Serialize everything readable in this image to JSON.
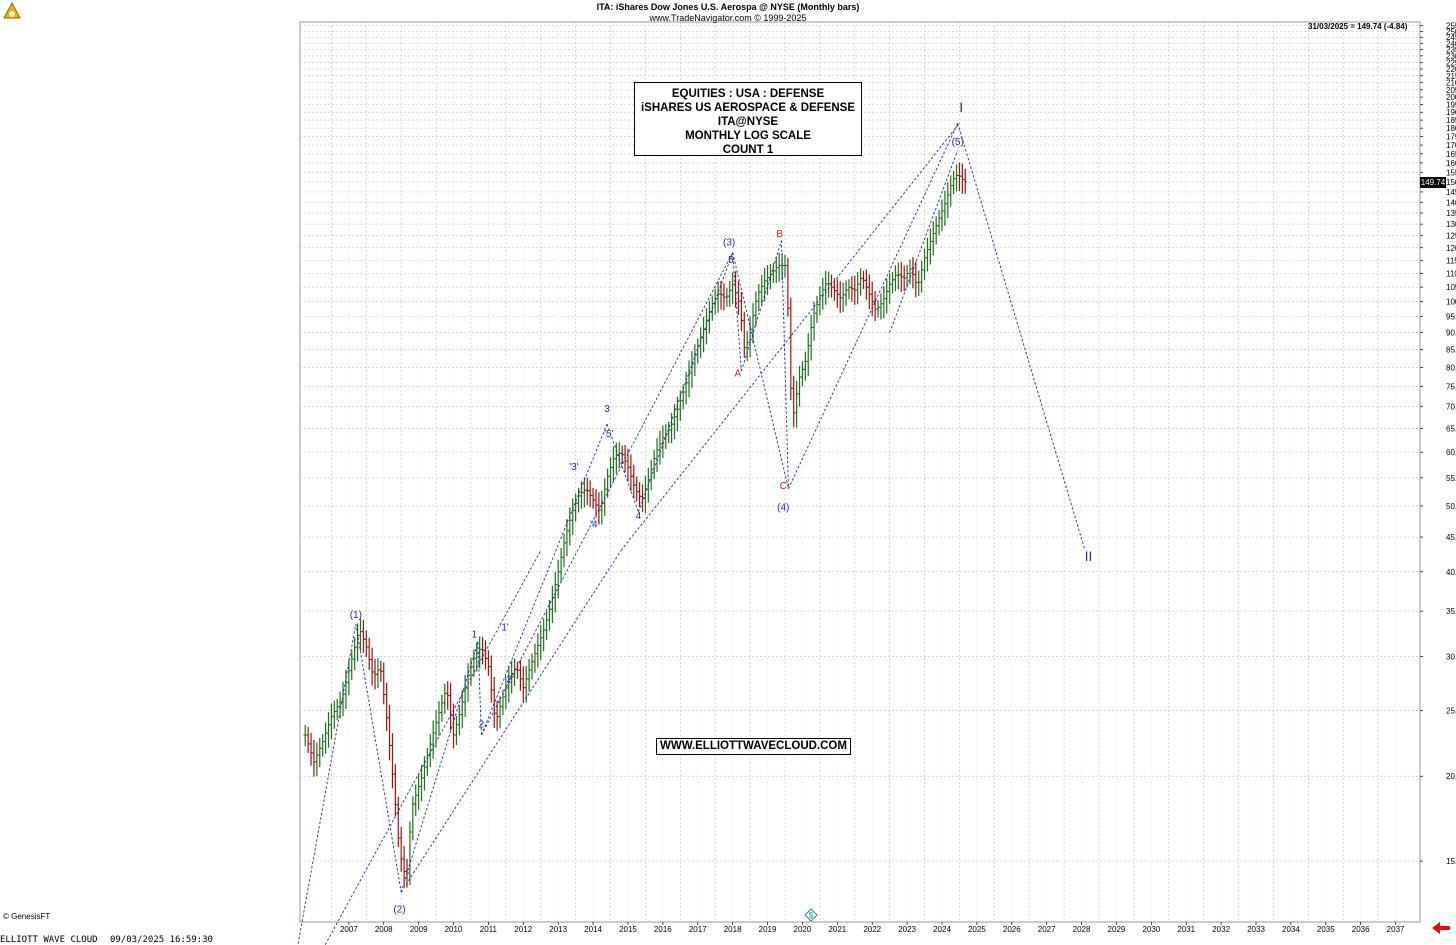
{
  "header": {
    "title": "ITA:  iShares Dow Jones U.S. Aerospa @ NYSE  (Monthly bars)",
    "source": "www.TradeNavigator.com © 1999-2025"
  },
  "info_box": [
    "EQUITIES : USA : DEFENSE",
    "iSHARES US AEROSPACE & DEFENSE",
    "ITA@NYSE",
    "MONTHLY LOG SCALE",
    "COUNT 1"
  ],
  "website": "WWW.ELLIOTTWAVECLOUD.COM",
  "last_price_note": "31/03/2025 = 149.74 (-4.84)",
  "last_price_box": "149.74",
  "copyright": "© GenesisFT",
  "footer": {
    "left": "ELLIOTT WAVE CLOUD",
    "timestamp": "09/03/2025 16:59:30"
  },
  "colors": {
    "wave": "#1f2d9e",
    "correction": "#cc2020",
    "up_bar": "#1f6e1f",
    "down_bar": "#a01010",
    "grid": "#c8c8c8"
  },
  "chart_data": {
    "type": "bar",
    "subtype": "ohlc-monthly-log",
    "x_axis_years": [
      "2007",
      "2008",
      "2009",
      "2010",
      "2011",
      "2012",
      "2013",
      "2014",
      "2015",
      "2016",
      "2017",
      "2018",
      "2019",
      "2020",
      "2021",
      "2022",
      "2023",
      "2024",
      "2025",
      "2026",
      "2027",
      "2028",
      "2029",
      "2030",
      "2031",
      "2032",
      "2033",
      "2034",
      "2035",
      "2036",
      "2037"
    ],
    "xlim": [
      2006.1,
      2038.2
    ],
    "y_scale": "log",
    "ylim": [
      12.2,
      258
    ],
    "y_ticks": [
      15,
      20,
      25,
      30,
      35,
      40,
      45,
      50,
      55,
      60,
      65,
      70,
      75,
      80,
      85,
      90,
      95,
      100,
      105,
      110,
      115,
      120,
      125,
      130,
      135,
      140,
      145,
      150,
      155,
      160,
      165,
      170,
      175,
      180,
      185,
      190,
      195,
      200,
      205,
      210,
      215,
      220,
      225,
      230,
      235,
      240,
      245,
      250,
      255
    ],
    "y_tick_labels": [
      "15.00",
      "20.00",
      "25.00",
      "30.00",
      "35.00",
      "40.00",
      "45.00",
      "50.00",
      "55.00",
      "60.00",
      "65.00",
      "70.00",
      "75.00",
      "80.00",
      "85.00",
      "90.00",
      "95.00",
      "100.00",
      "105.00",
      "110.00",
      "115.00",
      "120.00",
      "125.00",
      "130.00",
      "135.00",
      "140.00",
      "145.00",
      "150.00",
      "155.00",
      "160.00",
      "165.00",
      "170.00",
      "175.00",
      "180.00",
      "185.00",
      "190.00",
      "195.00",
      "200.00",
      "205.00",
      "210.00",
      "215.00",
      "220.00",
      "225.00",
      "230.00",
      "235.00",
      "240.00",
      "245.00",
      "250.00",
      "255.00"
    ],
    "grid": true,
    "price_path": [
      [
        2006.25,
        23
      ],
      [
        2006.5,
        21
      ],
      [
        2006.75,
        22.5
      ],
      [
        2007.0,
        24.5
      ],
      [
        2007.3,
        26
      ],
      [
        2007.6,
        30
      ],
      [
        2007.8,
        33
      ],
      [
        2008.0,
        31
      ],
      [
        2008.2,
        28
      ],
      [
        2008.4,
        29
      ],
      [
        2008.6,
        24
      ],
      [
        2008.8,
        19
      ],
      [
        2008.95,
        15.5
      ],
      [
        2009.15,
        14
      ],
      [
        2009.3,
        18
      ],
      [
        2009.6,
        20
      ],
      [
        2009.9,
        23
      ],
      [
        2010.1,
        25
      ],
      [
        2010.3,
        27
      ],
      [
        2010.5,
        23
      ],
      [
        2010.7,
        25
      ],
      [
        2010.9,
        28
      ],
      [
        2011.1,
        30
      ],
      [
        2011.3,
        31
      ],
      [
        2011.5,
        29
      ],
      [
        2011.7,
        24
      ],
      [
        2011.9,
        26
      ],
      [
        2012.1,
        28
      ],
      [
        2012.3,
        29
      ],
      [
        2012.5,
        27
      ],
      [
        2012.7,
        29
      ],
      [
        2012.9,
        31
      ],
      [
        2013.1,
        33
      ],
      [
        2013.3,
        36
      ],
      [
        2013.5,
        40
      ],
      [
        2013.7,
        45
      ],
      [
        2013.9,
        49
      ],
      [
        2014.1,
        52
      ],
      [
        2014.3,
        53
      ],
      [
        2014.5,
        51
      ],
      [
        2014.7,
        49
      ],
      [
        2014.9,
        55
      ],
      [
        2015.1,
        59
      ],
      [
        2015.3,
        60
      ],
      [
        2015.5,
        57
      ],
      [
        2015.7,
        53
      ],
      [
        2015.9,
        51
      ],
      [
        2016.1,
        55
      ],
      [
        2016.3,
        60
      ],
      [
        2016.5,
        63
      ],
      [
        2016.7,
        65
      ],
      [
        2016.9,
        69
      ],
      [
        2017.1,
        74
      ],
      [
        2017.3,
        80
      ],
      [
        2017.5,
        86
      ],
      [
        2017.7,
        92
      ],
      [
        2017.9,
        99
      ],
      [
        2018.1,
        103
      ],
      [
        2018.3,
        101
      ],
      [
        2018.5,
        106
      ],
      [
        2018.7,
        99
      ],
      [
        2018.85,
        84
      ],
      [
        2019.0,
        91
      ],
      [
        2019.2,
        102
      ],
      [
        2019.4,
        107
      ],
      [
        2019.6,
        110
      ],
      [
        2019.8,
        113
      ],
      [
        2020.0,
        113
      ],
      [
        2020.1,
        95
      ],
      [
        2020.2,
        66
      ],
      [
        2020.4,
        77
      ],
      [
        2020.6,
        82
      ],
      [
        2020.8,
        95
      ],
      [
        2021.0,
        102
      ],
      [
        2021.2,
        107
      ],
      [
        2021.4,
        104
      ],
      [
        2021.6,
        101
      ],
      [
        2021.8,
        105
      ],
      [
        2022.0,
        104
      ],
      [
        2022.2,
        109
      ],
      [
        2022.4,
        103
      ],
      [
        2022.6,
        97
      ],
      [
        2022.8,
        100
      ],
      [
        2023.0,
        106
      ],
      [
        2023.2,
        110
      ],
      [
        2023.4,
        108
      ],
      [
        2023.6,
        112
      ],
      [
        2023.8,
        105
      ],
      [
        2024.0,
        116
      ],
      [
        2024.2,
        124
      ],
      [
        2024.4,
        132
      ],
      [
        2024.6,
        140
      ],
      [
        2024.8,
        151
      ],
      [
        2024.95,
        154
      ],
      [
        2025.1,
        151
      ],
      [
        2025.2,
        149.74
      ]
    ],
    "wave_lines": [
      [
        [
          2006.0,
          11
        ],
        [
          2007.7,
          33.5
        ]
      ],
      [
        [
          2007.7,
          33.5
        ],
        [
          2009.0,
          13.5
        ]
      ],
      [
        [
          2009.0,
          13.5
        ],
        [
          2011.2,
          31.5
        ]
      ],
      [
        [
          2011.2,
          31.5
        ],
        [
          2011.3,
          23
        ]
      ],
      [
        [
          2011.3,
          23
        ],
        [
          2014.9,
          66
        ]
      ],
      [
        [
          2014.9,
          66
        ],
        [
          2015.8,
          49
        ]
      ],
      [
        [
          2015.8,
          49
        ],
        [
          2018.5,
          118
        ]
      ],
      [
        [
          2018.5,
          118
        ],
        [
          2020.1,
          53
        ]
      ],
      [
        [
          2020.1,
          53
        ],
        [
          2024.95,
          183
        ]
      ],
      [
        [
          2024.95,
          183
        ],
        [
          2028.6,
          43
        ]
      ],
      [
        [
          2006.7,
          11
        ],
        [
          2013.0,
          43
        ]
      ],
      [
        [
          2009.0,
          13.5
        ],
        [
          2015.3,
          43
        ]
      ],
      [
        [
          2015.3,
          43
        ],
        [
          2025.0,
          183
        ]
      ],
      [
        [
          2011.3,
          23
        ],
        [
          2018.5,
          118
        ]
      ],
      [
        [
          2018.5,
          118
        ],
        [
          2018.75,
          79
        ]
      ],
      [
        [
          2018.75,
          79
        ],
        [
          2019.9,
          123
        ]
      ],
      [
        [
          2019.9,
          123
        ],
        [
          2020.1,
          53
        ]
      ],
      [
        [
          2023.0,
          90
        ],
        [
          2024.95,
          167
        ]
      ]
    ],
    "annotations": [
      {
        "text": "(1)",
        "x": 2007.7,
        "y": 34.2,
        "color": "blue"
      },
      {
        "text": "(2)",
        "x": 2008.95,
        "y": 12.6,
        "color": "blue"
      },
      {
        "text": "1",
        "x": 2011.1,
        "y": 32.0,
        "color": "blue"
      },
      {
        "text": "'1'",
        "x": 2011.95,
        "y": 32.8,
        "color": "blue"
      },
      {
        "text": "2",
        "x": 2011.3,
        "y": 23.6,
        "color": "blue"
      },
      {
        "text": "'2'",
        "x": 2012.1,
        "y": 27.5,
        "color": "blue"
      },
      {
        "text": "'3'",
        "x": 2013.95,
        "y": 56.5,
        "color": "blue"
      },
      {
        "text": "'4'",
        "x": 2014.55,
        "y": 46.5,
        "color": "blue"
      },
      {
        "text": "3",
        "x": 2014.9,
        "y": 68.8,
        "color": "blue"
      },
      {
        "text": "'5'",
        "x": 2014.95,
        "y": 63.2,
        "color": "blue"
      },
      {
        "text": "4",
        "x": 2015.8,
        "y": 47.8,
        "color": "blue"
      },
      {
        "text": "(3)",
        "x": 2018.4,
        "y": 121.0,
        "color": "blue"
      },
      {
        "text": "5",
        "x": 2018.45,
        "y": 114.0,
        "color": "blue"
      },
      {
        "text": "A",
        "x": 2018.65,
        "y": 77.5,
        "color": "red"
      },
      {
        "text": "B",
        "x": 2019.85,
        "y": 124.5,
        "color": "red"
      },
      {
        "text": "C",
        "x": 2019.95,
        "y": 53.0,
        "color": "red"
      },
      {
        "text": "(4)",
        "x": 2019.95,
        "y": 49.2,
        "color": "blue"
      },
      {
        "text": "(5)",
        "x": 2024.95,
        "y": 170.0,
        "color": "blue"
      },
      {
        "text": "I",
        "x": 2025.05,
        "y": 190.0,
        "color": "blue"
      },
      {
        "text": "II",
        "x": 2028.7,
        "y": 41.5,
        "color": "blue"
      }
    ]
  }
}
